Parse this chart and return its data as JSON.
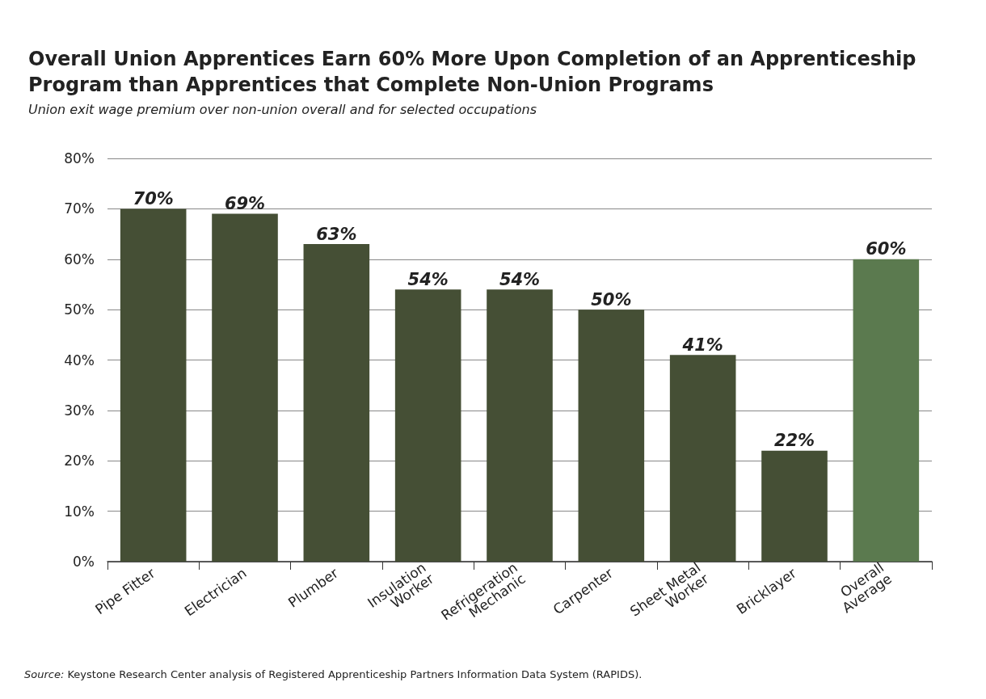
{
  "chart_data": {
    "type": "bar",
    "title": "Overall Union Apprentices Earn 60% More Upon Completion of an Apprenticeship Program than Apprentices that Complete Non-Union Programs",
    "subtitle": "Union exit wage premium over non-union overall and for selected occupations",
    "categories": [
      "Pipe Fitter",
      "Electrician",
      "Plumber",
      "Insulation\nWorker",
      "Refrigeration\nMechanic",
      "Carpenter",
      "Sheet Metal\nWorker",
      "Bricklayer",
      "Overall\nAverage"
    ],
    "values": [
      70,
      69,
      63,
      54,
      54,
      50,
      41,
      22,
      60
    ],
    "colors": [
      "#454f35",
      "#454f35",
      "#454f35",
      "#454f35",
      "#454f35",
      "#454f35",
      "#454f35",
      "#454f35",
      "#5b7a4f"
    ],
    "value_labels": [
      "70%",
      "69%",
      "63%",
      "54%",
      "54%",
      "50%",
      "41%",
      "22%",
      "60%"
    ],
    "ylim": [
      0,
      80
    ],
    "yticks": [
      {
        "value": 0,
        "label": "0%"
      },
      {
        "value": 10,
        "label": "10%"
      },
      {
        "value": 20,
        "label": "20%"
      },
      {
        "value": 30,
        "label": "30%"
      },
      {
        "value": 40,
        "label": "40%"
      },
      {
        "value": 50,
        "label": "50%"
      },
      {
        "value": 60,
        "label": "60%"
      },
      {
        "value": 70,
        "label": "70%"
      },
      {
        "value": 80,
        "label": "80%"
      }
    ],
    "grid": "y",
    "annotations": [
      "Source: Keystone Research Center analysis of Registered Apprenticeship Partners Information Data System (RAPIDS)."
    ]
  }
}
